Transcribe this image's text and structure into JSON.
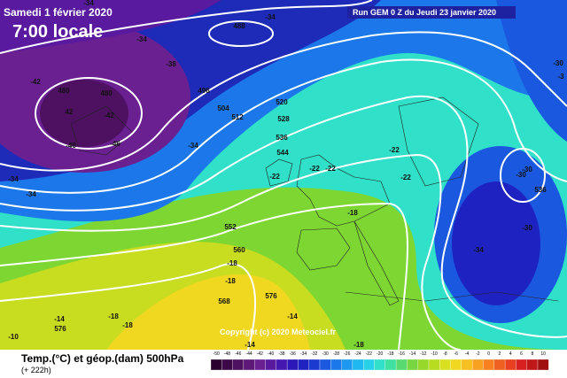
{
  "header": {
    "date": "Samedi 1 février 2020",
    "time": "7:00 locale",
    "run": "Run GEM 0 Z du Jeudi 23 janvier 2020"
  },
  "copyright": "Copyright (c) 2020 Meteociel.fr",
  "map_labels": [
    "-34",
    "-34",
    "488",
    "-34",
    "-38",
    "-42",
    "480",
    "480",
    "42",
    "-42",
    "496",
    "504",
    "512",
    "520",
    "528",
    "536",
    "-46",
    "-46",
    "-34",
    "544",
    "-34",
    "-34",
    "-22",
    "-22",
    "-22",
    "-22",
    "-22",
    "-18",
    "552",
    "560",
    "-18",
    "-18",
    "568",
    "576",
    "-14",
    "576",
    "-18",
    "-18",
    "-14",
    "-14",
    "-18",
    "-10",
    "-30",
    "-30",
    "536",
    "-30",
    "-34",
    "-3",
    "-30"
  ],
  "legend": {
    "title": "Temp.(°C) et géop.(dam) 500hPa",
    "lead": "(+ 222h)",
    "ticks": [
      -50,
      -48,
      -46,
      -44,
      -42,
      -40,
      -38,
      -36,
      -34,
      -32,
      -30,
      -28,
      -26,
      -24,
      -22,
      -20,
      -18,
      -16,
      -14,
      -12,
      -10,
      -8,
      -6,
      -4,
      -2,
      0,
      2,
      4,
      6,
      8,
      10
    ],
    "colors": [
      "#2a0030",
      "#3c0848",
      "#4e1060",
      "#5e1878",
      "#6a2090",
      "#5a1aa0",
      "#4418b0",
      "#2c18b8",
      "#1e22c0",
      "#1a3ad0",
      "#1a58e0",
      "#1a78ea",
      "#1c98f0",
      "#20b8f0",
      "#28d0e8",
      "#30e0c8",
      "#40e0a0",
      "#58da70",
      "#78d640",
      "#98d828",
      "#b8dc20",
      "#d8e020",
      "#f0d820",
      "#f8c020",
      "#f8a020",
      "#f88020",
      "#f06020",
      "#e84020",
      "#d82020",
      "#c01818",
      "#a01010"
    ]
  }
}
